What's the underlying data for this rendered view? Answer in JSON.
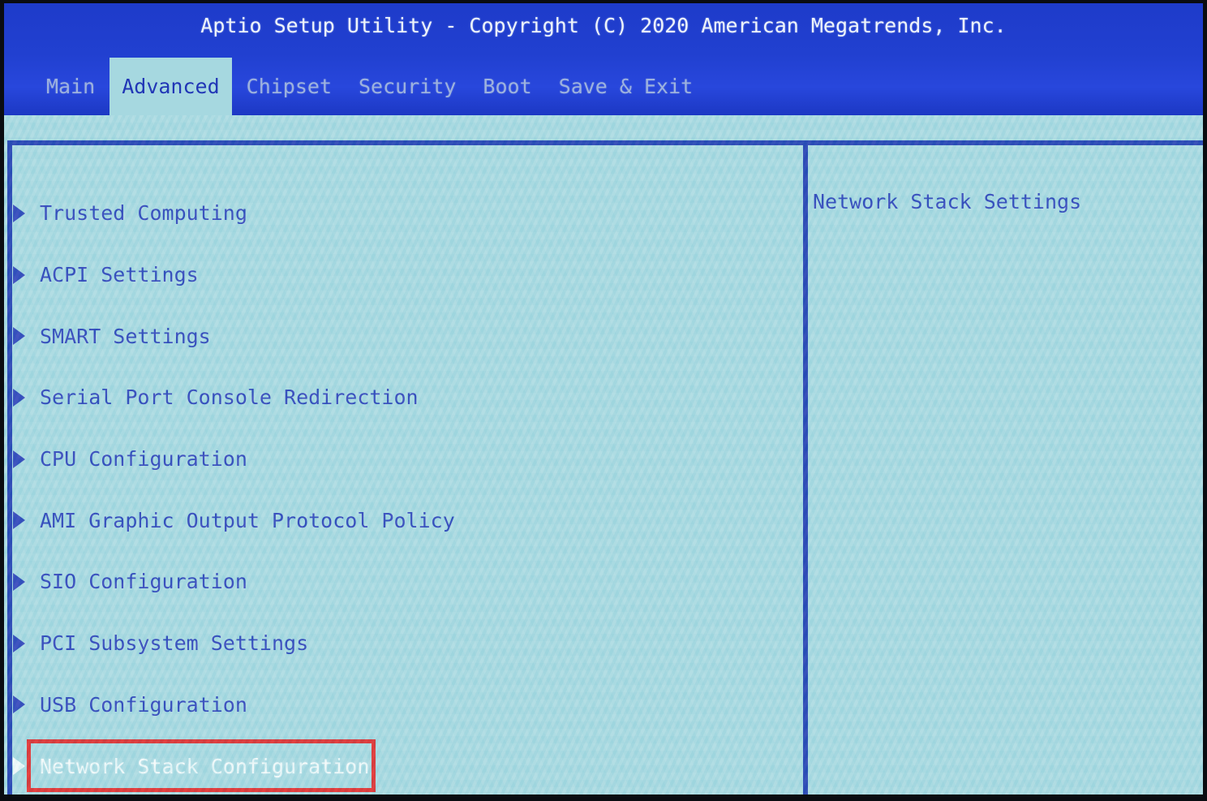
{
  "window": {
    "title": "Aptio Setup Utility - Copyright (C) 2020 American Megatrends, Inc."
  },
  "menubar": {
    "tabs": [
      {
        "label": "Main",
        "active": false
      },
      {
        "label": "Advanced",
        "active": true
      },
      {
        "label": "Chipset",
        "active": false
      },
      {
        "label": "Security",
        "active": false
      },
      {
        "label": "Boot",
        "active": false
      },
      {
        "label": "Save & Exit",
        "active": false
      }
    ]
  },
  "menu": {
    "items": [
      {
        "label": "Trusted Computing",
        "selected": false
      },
      {
        "label": "ACPI Settings",
        "selected": false
      },
      {
        "label": "SMART Settings",
        "selected": false
      },
      {
        "label": "Serial Port Console Redirection",
        "selected": false
      },
      {
        "label": "CPU Configuration",
        "selected": false
      },
      {
        "label": "AMI Graphic Output Protocol Policy",
        "selected": false
      },
      {
        "label": "SIO Configuration",
        "selected": false
      },
      {
        "label": "PCI Subsystem Settings",
        "selected": false
      },
      {
        "label": "USB Configuration",
        "selected": false
      },
      {
        "label": "Network Stack Configuration",
        "selected": true,
        "annotated": true
      }
    ]
  },
  "help": {
    "text": "Network Stack Settings"
  },
  "icons": {
    "submenu_arrow_icon": "▶"
  },
  "colors": {
    "header_blue": "#2140d0",
    "body_cyan": "#a6d8e0",
    "frame_blue": "#1532ae",
    "menu_text_blue": "#2136b6",
    "tab_inactive_text": "#9db2de",
    "selected_text": "#f4fbfb",
    "annotation_red": "#e31f1f",
    "title_white": "#eef4fa"
  }
}
